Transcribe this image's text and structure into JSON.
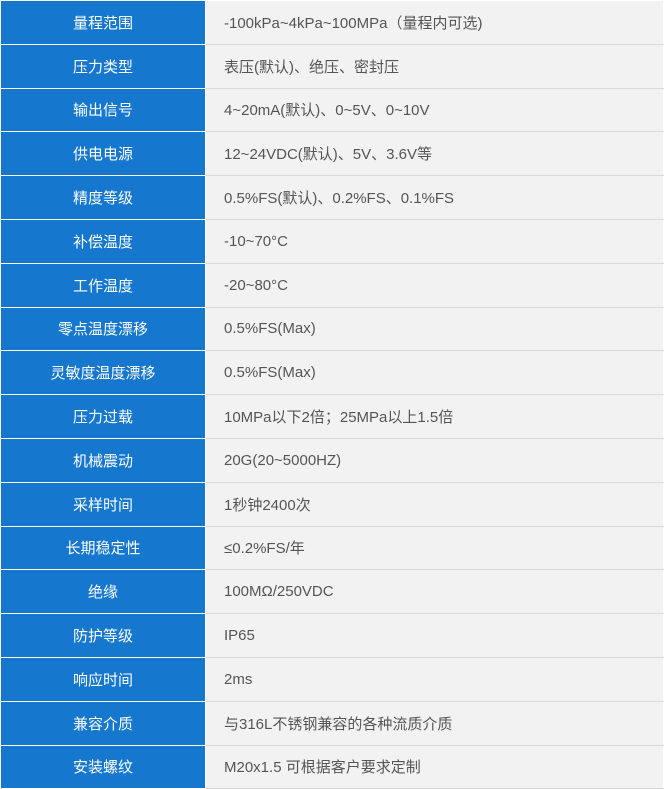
{
  "table": {
    "label_bg": "#1577cd",
    "label_color": "#ffffff",
    "value_bg": "#f2f2f2",
    "value_color": "#555555",
    "rows": [
      {
        "label": "量程范围",
        "value": "-100kPa~4kPa~100MPa（量程内可选)"
      },
      {
        "label": "压力类型",
        "value": "表压(默认)、绝压、密封压"
      },
      {
        "label": "输出信号",
        "value": "4~20mA(默认)、0~5V、0~10V"
      },
      {
        "label": "供电电源",
        "value": "12~24VDC(默认)、5V、3.6V等"
      },
      {
        "label": "精度等级",
        "value": "0.5%FS(默认)、0.2%FS、0.1%FS"
      },
      {
        "label": "补偿温度",
        "value": "-10~70°C"
      },
      {
        "label": "工作温度",
        "value": "-20~80°C"
      },
      {
        "label": "零点温度漂移",
        "value": "0.5%FS(Max)"
      },
      {
        "label": "灵敏度温度漂移",
        "value": "0.5%FS(Max)"
      },
      {
        "label": "压力过载",
        "value": "10MPa以下2倍；25MPa以上1.5倍"
      },
      {
        "label": "机械震动",
        "value": "20G(20~5000HZ)"
      },
      {
        "label": "采样时间",
        "value": "1秒钟2400次"
      },
      {
        "label": "长期稳定性",
        "value": "≤0.2%FS/年"
      },
      {
        "label": "绝缘",
        "value": "100MΩ/250VDC"
      },
      {
        "label": "防护等级",
        "value": "IP65"
      },
      {
        "label": "响应时间",
        "value": "2ms"
      },
      {
        "label": "兼容介质",
        "value": "与316L不锈钢兼容的各种流质介质"
      },
      {
        "label": "安装螺纹",
        "value": "M20x1.5  可根据客户要求定制"
      }
    ]
  }
}
